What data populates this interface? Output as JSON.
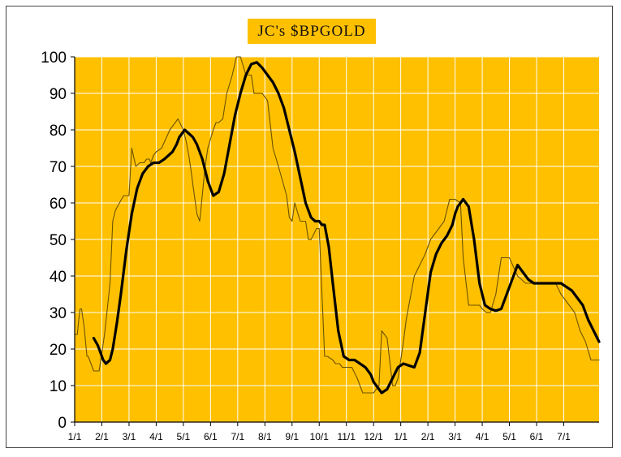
{
  "chart_data": {
    "type": "line",
    "title": "JC's $BPGOLD",
    "ylim": [
      0,
      100
    ],
    "yticks": [
      0,
      10,
      20,
      30,
      40,
      50,
      60,
      70,
      80,
      90,
      100
    ],
    "xlim": [
      0,
      19.3
    ],
    "x_tick_labels": [
      "1/1",
      "2/1",
      "3/1",
      "4/1",
      "5/1",
      "6/1",
      "7/1",
      "8/1",
      "9/1",
      "10/1",
      "11/1",
      "12/1",
      "1/1",
      "2/1",
      "3/1",
      "4/1",
      "5/1",
      "6/1",
      "7/1"
    ],
    "grid": true,
    "background_color": "#ffc000",
    "grid_color": "#ffffff",
    "series": [
      {
        "style": "thin",
        "color": "#6b5300",
        "x": [
          0.0,
          0.1,
          0.15,
          0.2,
          0.25,
          0.35,
          0.45,
          0.5,
          0.7,
          0.9,
          1.1,
          1.2,
          1.3,
          1.4,
          1.5,
          1.65,
          1.8,
          2.0,
          2.1,
          2.25,
          2.4,
          2.55,
          2.65,
          2.75,
          2.8,
          2.9,
          3.0,
          3.2,
          3.5,
          3.8,
          4.0,
          4.1,
          4.2,
          4.3,
          4.35,
          4.5,
          4.6,
          4.8,
          4.9,
          5.1,
          5.2,
          5.3,
          5.45,
          5.6,
          5.8,
          5.95,
          6.1,
          6.3,
          6.5,
          6.6,
          6.75,
          6.9,
          7.1,
          7.3,
          7.5,
          7.8,
          7.9,
          8.0,
          8.1,
          8.3,
          8.5,
          8.6,
          8.7,
          8.9,
          9.0,
          9.2,
          9.3,
          9.5,
          9.6,
          9.75,
          9.85,
          10.0,
          10.2,
          10.4,
          10.6,
          10.8,
          11.0,
          11.2,
          11.3,
          11.5,
          11.7,
          11.8,
          11.9,
          12.0,
          12.1,
          12.2,
          12.3,
          12.5,
          12.7,
          12.9,
          13.0,
          13.1,
          13.3,
          13.6,
          13.8,
          14.0,
          14.2,
          14.3,
          14.5,
          14.7,
          14.9,
          15.0,
          15.15,
          15.3,
          15.5,
          15.7,
          15.8,
          16.0,
          16.3,
          16.6,
          16.9,
          17.2,
          17.5,
          17.7,
          17.9,
          18.2,
          18.4,
          18.6,
          18.8,
          19.0,
          19.2,
          19.3
        ],
        "y": [
          24,
          24,
          28,
          31,
          31,
          26,
          18,
          18,
          14,
          14,
          24,
          31,
          38,
          55,
          58,
          60,
          62,
          62,
          75,
          70,
          71,
          71,
          72,
          72,
          71,
          73,
          74,
          75,
          80,
          83,
          80,
          77,
          73,
          68,
          65,
          57,
          55,
          70,
          75,
          80,
          82,
          82,
          83,
          90,
          95,
          100,
          100,
          95,
          95,
          90,
          90,
          90,
          88,
          75,
          70,
          62,
          56,
          55,
          60,
          55,
          55,
          50,
          50,
          53,
          53,
          18,
          18,
          17,
          16,
          16,
          15,
          15,
          15,
          12,
          8,
          8,
          8,
          10,
          25,
          23,
          10,
          10,
          12,
          17,
          22,
          28,
          32,
          40,
          43,
          46,
          48,
          50,
          52,
          55,
          61,
          61,
          60,
          45,
          32,
          32,
          32,
          31,
          30,
          30,
          35,
          45,
          45,
          45,
          40,
          38,
          38,
          38,
          38,
          38,
          35,
          32,
          30,
          25,
          22,
          17,
          17,
          17
        ],
        "name": ""
      },
      {
        "style": "smoothed",
        "color": "#000000",
        "x": [
          0.7,
          0.85,
          0.95,
          1.05,
          1.15,
          1.3,
          1.4,
          1.55,
          1.7,
          1.9,
          2.1,
          2.3,
          2.5,
          2.7,
          2.9,
          3.1,
          3.3,
          3.45,
          3.6,
          3.75,
          3.85,
          3.95,
          4.05,
          4.2,
          4.35,
          4.5,
          4.7,
          4.9,
          5.1,
          5.3,
          5.5,
          5.7,
          5.9,
          6.1,
          6.3,
          6.5,
          6.7,
          6.9,
          7.1,
          7.3,
          7.5,
          7.7,
          7.9,
          8.1,
          8.3,
          8.5,
          8.7,
          8.85,
          9.0,
          9.1,
          9.2,
          9.35,
          9.5,
          9.7,
          9.9,
          10.1,
          10.3,
          10.5,
          10.7,
          10.9,
          11.0,
          11.1,
          11.3,
          11.5,
          11.7,
          11.9,
          12.1,
          12.3,
          12.5,
          12.7,
          12.9,
          13.1,
          13.3,
          13.5,
          13.7,
          13.9,
          14.0,
          14.1,
          14.2,
          14.3,
          14.5,
          14.7,
          14.9,
          15.1,
          15.3,
          15.5,
          15.7,
          15.9,
          16.1,
          16.3,
          16.5,
          16.7,
          16.9,
          17.1,
          17.3,
          17.5,
          17.7,
          17.9,
          18.1,
          18.3,
          18.5,
          18.7,
          18.9,
          19.1,
          19.3
        ],
        "y": [
          23,
          21,
          19,
          17,
          16,
          17,
          20,
          27,
          35,
          47,
          57,
          64,
          68,
          70,
          71,
          71,
          72,
          73,
          74,
          76,
          78,
          79,
          80,
          79,
          78,
          76,
          72,
          66,
          62,
          63,
          68,
          76,
          84,
          90,
          95,
          98,
          98.5,
          97,
          95,
          93,
          90,
          86,
          80,
          74,
          67,
          60,
          56,
          55,
          55,
          54,
          54,
          48,
          38,
          25,
          18,
          17,
          17,
          16,
          15,
          13,
          11,
          10,
          8,
          9,
          12,
          15,
          16,
          15.5,
          15,
          19,
          30,
          41,
          46,
          49,
          51,
          54,
          57,
          59,
          60,
          61,
          59,
          50,
          38,
          32,
          31,
          30.5,
          31,
          35,
          39,
          43,
          41,
          39,
          38,
          38,
          38,
          38,
          38,
          38,
          37,
          36,
          34,
          32,
          28,
          25,
          22
        ],
        "name": ""
      }
    ]
  }
}
